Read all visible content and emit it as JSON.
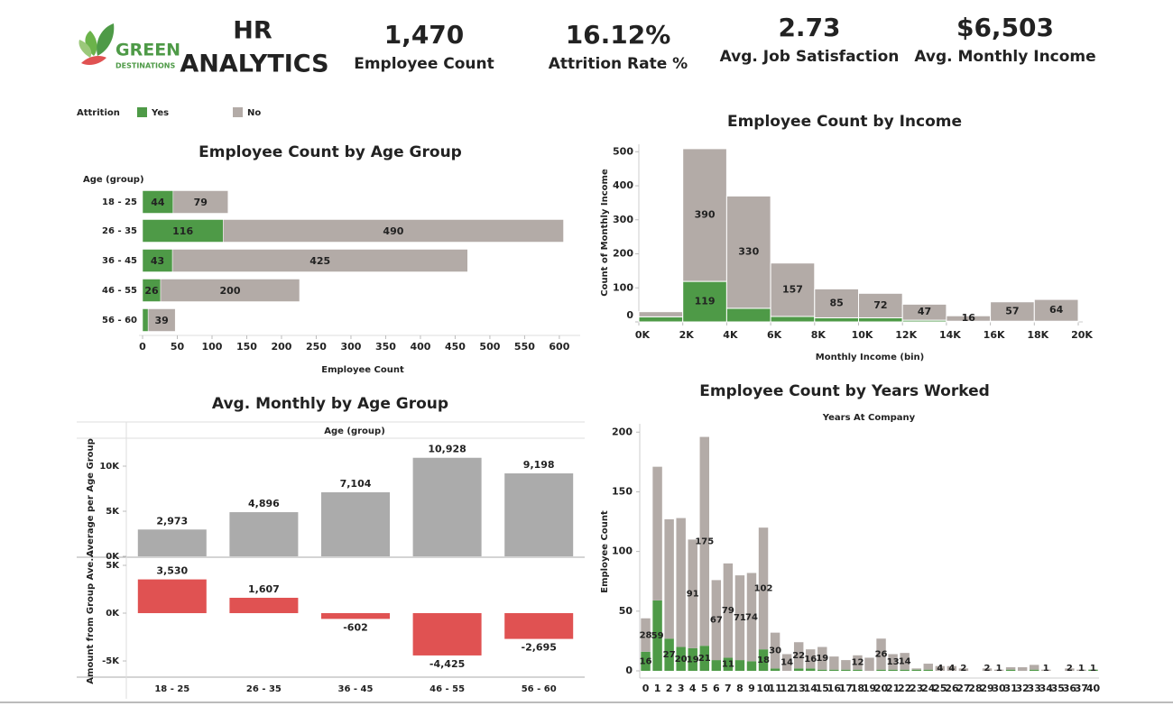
{
  "header": {
    "logo": [
      "GREEN",
      "DESTINATIONS"
    ],
    "title": [
      "HR",
      "ANALYTICS"
    ]
  },
  "kpis": [
    {
      "value": "1,470",
      "label": "Employee Count"
    },
    {
      "value": "16.12%",
      "label": "Attrition Rate %"
    },
    {
      "value": "2.73",
      "label": "Avg. Job Satisfaction"
    },
    {
      "value": "$6,503",
      "label": "Avg. Monthly Income"
    }
  ],
  "chart_data": [
    {
      "type": "hbar_stacked",
      "title": "Employee Count by Age Group",
      "legend_title": "Attrition",
      "category_axis_label": "Age (group)",
      "x_label": "Employee Count",
      "categories": [
        "18 - 25",
        "26 - 35",
        "36 - 45",
        "46 - 55",
        "56 - 60"
      ],
      "series": [
        {
          "name": "Yes",
          "color": "#4e9a47",
          "values": [
            44,
            116,
            43,
            26,
            8
          ],
          "value_labels": [
            "44",
            "116",
            "43",
            "26",
            null
          ]
        },
        {
          "name": "No",
          "color": "#b3aba7",
          "values": [
            79,
            490,
            425,
            200,
            39
          ]
        }
      ],
      "xlim": [
        0,
        630
      ],
      "xticks": [
        0,
        50,
        100,
        150,
        200,
        250,
        300,
        350,
        400,
        450,
        500,
        550,
        600
      ]
    },
    {
      "type": "histogram_stacked",
      "title": "Employee Count by Income",
      "x_label": "Monthly Income (bin)",
      "y_label": "Count of Monthly Income",
      "bins": [
        0,
        2000,
        4000,
        6000,
        8000,
        10000,
        12000,
        14000,
        16000,
        18000,
        20000
      ],
      "series": [
        {
          "color": "#4e9a47",
          "values": [
            15,
            119,
            40,
            16,
            12,
            12,
            5,
            2,
            2,
            2
          ],
          "value_labels": [
            null,
            "119",
            null,
            null,
            null,
            null,
            null,
            null,
            null,
            null
          ]
        },
        {
          "color": "#b3aba7",
          "values": [
            15,
            390,
            330,
            157,
            85,
            72,
            47,
            16,
            57,
            64
          ],
          "value_labels": [
            null,
            "390",
            "330",
            "157",
            "85",
            "72",
            "47",
            "16",
            "57",
            "64"
          ]
        }
      ],
      "xlim": [
        0,
        20000
      ],
      "xticks": [
        {
          "value": 0,
          "label": "0K"
        },
        {
          "value": 2000,
          "label": "2K"
        },
        {
          "value": 4000,
          "label": "4K"
        },
        {
          "value": 6000,
          "label": "6K"
        },
        {
          "value": 8000,
          "label": "8K"
        },
        {
          "value": 10000,
          "label": "10K"
        },
        {
          "value": 12000,
          "label": "12K"
        },
        {
          "value": 14000,
          "label": "14K"
        },
        {
          "value": 16000,
          "label": "16K"
        },
        {
          "value": 18000,
          "label": "18K"
        },
        {
          "value": 20000,
          "label": "20K"
        }
      ],
      "ylim": [
        0,
        522
      ],
      "yticks": [
        0,
        100,
        200,
        300,
        400,
        500
      ]
    },
    {
      "type": "bar_panels",
      "title": "Avg. Monthly by Age Group",
      "column_header": "Age (group)",
      "categories": [
        "18 - 25",
        "26 - 35",
        "36 - 45",
        "46 - 55",
        "56 - 60"
      ],
      "panels": [
        {
          "y_label": "Average per Age Group",
          "color": "#ababab",
          "values": [
            2973,
            4896,
            7104,
            10928,
            9198
          ],
          "value_labels": [
            "2,973",
            "4,896",
            "7,104",
            "10,928",
            "9,198"
          ],
          "ylim": [
            0,
            13000
          ],
          "yticks": [
            {
              "value": 0,
              "label": "0K"
            },
            {
              "value": 5000,
              "label": "5K"
            },
            {
              "value": 10000,
              "label": "10K"
            }
          ]
        },
        {
          "y_label": "Amount from Group Ave...",
          "color": "#e05252",
          "values": [
            3530,
            1607,
            -602,
            -4425,
            -2695
          ],
          "value_labels": [
            "3,530",
            "1,607",
            "-602",
            "-4,425",
            "-2,695"
          ],
          "ylim": [
            -6600,
            5660
          ],
          "yticks": [
            {
              "value": -5000,
              "label": "-5K"
            },
            {
              "value": 0,
              "label": "0K"
            },
            {
              "value": 5000,
              "label": "5K"
            }
          ]
        }
      ]
    },
    {
      "type": "column_stacked",
      "title": "Employee Count by Years Worked",
      "subtitle": "Years At Company",
      "y_label": "Employee Count",
      "categories": [
        "0",
        "1",
        "2",
        "3",
        "4",
        "5",
        "6",
        "7",
        "8",
        "9",
        "10",
        "11",
        "12",
        "13",
        "14",
        "15",
        "16",
        "17",
        "18",
        "19",
        "20",
        "21",
        "22",
        "23",
        "24",
        "25",
        "26",
        "27",
        "28",
        "29",
        "30",
        "31",
        "32",
        "33",
        "34",
        "35",
        "36",
        "37",
        "40"
      ],
      "series": [
        {
          "color": "#4e9a47",
          "values": [
            16,
            59,
            27,
            20,
            19,
            21,
            9,
            11,
            9,
            8,
            18,
            2,
            0,
            2,
            2,
            1,
            1,
            1,
            1,
            0,
            1,
            1,
            1,
            1,
            1,
            0,
            0,
            0,
            0,
            0,
            0,
            1,
            0,
            1,
            0,
            0,
            0,
            0,
            1
          ],
          "value_labels": [
            "16",
            "59",
            "27",
            "20",
            "19",
            "21",
            null,
            "11",
            null,
            null,
            "18",
            null,
            null,
            null,
            null,
            null,
            null,
            null,
            null,
            null,
            null,
            null,
            null,
            null,
            null,
            null,
            null,
            null,
            null,
            null,
            null,
            null,
            null,
            null,
            null,
            null,
            null,
            null,
            "1"
          ]
        },
        {
          "color": "#b3aba7",
          "values": [
            28,
            112,
            100,
            108,
            91,
            175,
            67,
            79,
            71,
            74,
            102,
            30,
            14,
            22,
            16,
            19,
            11,
            8,
            12,
            11,
            26,
            13,
            14,
            1,
            5,
            4,
            4,
            2,
            0,
            2,
            1,
            2,
            3,
            4,
            1,
            0,
            2,
            1,
            0
          ],
          "value_labels": [
            "28",
            null,
            null,
            null,
            "91",
            "175",
            "67",
            "79",
            "71",
            "74",
            "102",
            "30",
            "14",
            "22",
            "16",
            "19",
            null,
            null,
            "12",
            null,
            "26",
            "13",
            "14",
            null,
            null,
            "4",
            "4",
            "2",
            null,
            "2",
            "1",
            null,
            null,
            null,
            "1",
            null,
            "2",
            "1",
            null
          ]
        }
      ],
      "ylim": [
        0,
        207
      ],
      "yticks": [
        0,
        50,
        100,
        150,
        200
      ]
    }
  ]
}
